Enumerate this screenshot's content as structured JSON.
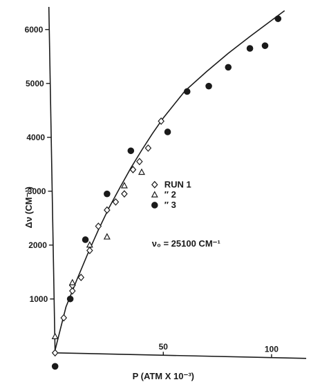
{
  "chart_data": {
    "type": "scatter",
    "xlabel": "P (ATM X 10⁻³)",
    "ylabel": "Δν (CM⁻¹)",
    "xlim": [
      -1.5,
      116
    ],
    "ylim": [
      -400,
      6420
    ],
    "x_ticks": [
      50,
      100
    ],
    "y_ticks": [
      1000,
      2000,
      3000,
      4000,
      5000,
      6000
    ],
    "grid": false,
    "legend_position": "middle-right",
    "annotation": "ν₀ = 25100 CM⁻¹",
    "series": [
      {
        "name": "RUN 1",
        "label": "RUN 1",
        "marker": "diamond",
        "x": [
          0,
          4,
          8,
          8,
          12,
          16,
          20,
          24,
          28,
          32,
          36,
          39,
          43,
          49
        ],
        "y": [
          0,
          650,
          1150,
          1250,
          1400,
          1900,
          2350,
          2650,
          2800,
          2950,
          3400,
          3550,
          3800,
          4300
        ]
      },
      {
        "name": "2",
        "label": "″ 2",
        "marker": "triangle",
        "x": [
          0,
          8,
          16,
          24,
          32,
          40
        ],
        "y": [
          300,
          1300,
          2000,
          2150,
          3100,
          3350
        ]
      },
      {
        "name": "3",
        "label": "″ 3",
        "marker": "filled-circle",
        "x": [
          0,
          7,
          14,
          24,
          35,
          52,
          61,
          71,
          80,
          90,
          97,
          103
        ],
        "y": [
          -250,
          1000,
          2100,
          2950,
          3750,
          4100,
          4850,
          4950,
          5300,
          5650,
          5700,
          6200
        ]
      }
    ],
    "fit_curve": {
      "x": [
        0,
        5,
        10,
        15,
        20,
        25,
        30,
        35,
        40,
        45,
        50,
        60,
        70,
        80,
        90,
        100,
        106
      ],
      "y": [
        50,
        850,
        1350,
        1830,
        2280,
        2700,
        3070,
        3430,
        3760,
        4070,
        4360,
        4860,
        5220,
        5560,
        5870,
        6170,
        6350
      ]
    }
  }
}
